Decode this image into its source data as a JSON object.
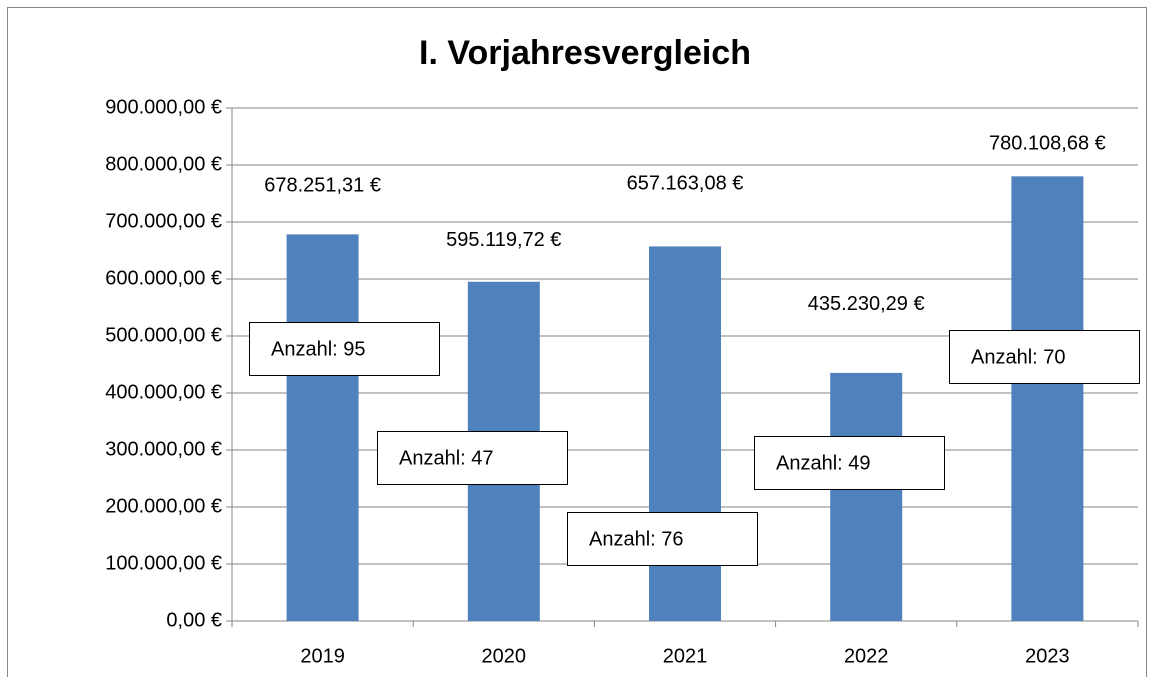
{
  "chart_data": {
    "type": "bar",
    "title": "I. Vorjahresvergleich",
    "categories": [
      "2019",
      "2020",
      "2021",
      "2022",
      "2023"
    ],
    "values": [
      678251.31,
      595119.72,
      657163.08,
      435230.29,
      780108.68
    ],
    "value_labels": [
      "678.251,31 €",
      "595.119,72 €",
      "657.163,08 €",
      "435.230,29 €",
      "780.108,68 €"
    ],
    "annotations": [
      "Anzahl: 95",
      "Anzahl: 47",
      "Anzahl: 76",
      "Anzahl: 49",
      "Anzahl: 70"
    ],
    "color": "#4f81bd",
    "ylim": [
      0,
      900000
    ],
    "yticks": [
      {
        "value": 0,
        "label": "0,00 €"
      },
      {
        "value": 100000,
        "label": "100.000,00 €"
      },
      {
        "value": 200000,
        "label": "200.000,00 €"
      },
      {
        "value": 300000,
        "label": "300.000,00 €"
      },
      {
        "value": 400000,
        "label": "400.000,00 €"
      },
      {
        "value": 500000,
        "label": "500.000,00 €"
      },
      {
        "value": 600000,
        "label": "600.000,00 €"
      },
      {
        "value": 700000,
        "label": "700.000,00 €"
      },
      {
        "value": 800000,
        "label": "800.000,00 €"
      },
      {
        "value": 900000,
        "label": "900.000,00 €"
      }
    ],
    "grid": true
  }
}
